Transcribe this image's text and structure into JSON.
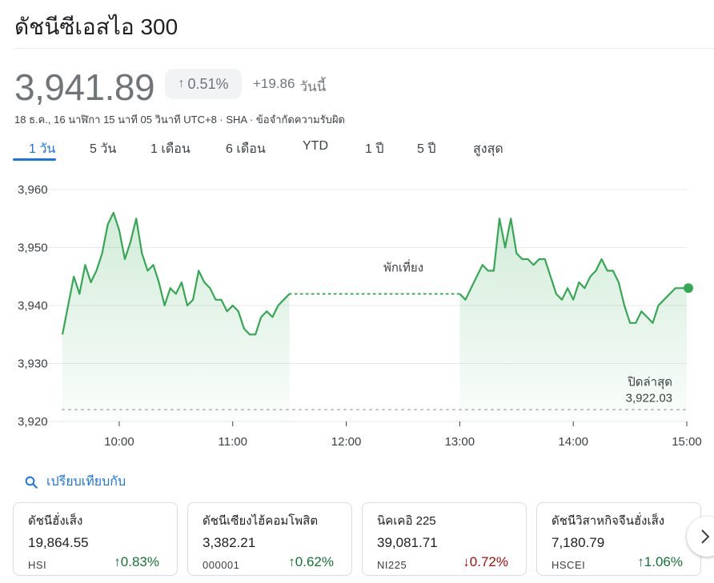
{
  "header": {
    "title": "ดัชนีซีเอสไอ 300",
    "price": "3,941.89",
    "pct_change": "0.51%",
    "abs_change": "+19.86",
    "change_period": "วันนี้",
    "meta": "18 ธ.ค., 16 นาฬิกา 15 นาที 05 วินาที UTC+8 · SHA · ข้อจำกัดความรับผิด"
  },
  "tabs": [
    {
      "label": "1 วัน",
      "active": true
    },
    {
      "label": "5 วัน"
    },
    {
      "label": "1 เดือน"
    },
    {
      "label": "6 เดือน"
    },
    {
      "label": "YTD"
    },
    {
      "label": "1 ปี"
    },
    {
      "label": "5 ปี"
    },
    {
      "label": "สูงสุด"
    }
  ],
  "chart_data": {
    "type": "line",
    "y_ticks": [
      "3,960",
      "3,950",
      "3,940",
      "3,930",
      "3,920"
    ],
    "x_ticks": [
      "10:00",
      "11:00",
      "12:00",
      "13:00",
      "14:00",
      "15:00"
    ],
    "ylim": [
      3920,
      3960
    ],
    "xlim": [
      "09:30",
      "15:00"
    ],
    "lunch_break_label": "พักเที่ยง",
    "lunch_break": [
      "11:30",
      "13:00"
    ],
    "previous_close_label": "ปิดล่าสุด",
    "previous_close_value": "3,922.03",
    "previous_close": 3922.03,
    "line_color": "#34a853",
    "morning": {
      "x": [
        "09:30",
        "09:33",
        "09:36",
        "09:39",
        "09:42",
        "09:45",
        "09:48",
        "09:51",
        "09:54",
        "09:57",
        "10:00",
        "10:03",
        "10:06",
        "10:09",
        "10:12",
        "10:15",
        "10:18",
        "10:21",
        "10:24",
        "10:27",
        "10:30",
        "10:33",
        "10:36",
        "10:39",
        "10:42",
        "10:45",
        "10:48",
        "10:51",
        "10:54",
        "10:57",
        "11:00",
        "11:03",
        "11:06",
        "11:09",
        "11:12",
        "11:15",
        "11:18",
        "11:21",
        "11:24",
        "11:27",
        "11:30"
      ],
      "y": [
        3935,
        3940,
        3945,
        3942,
        3947,
        3944,
        3946,
        3949,
        3954,
        3956,
        3953,
        3948,
        3951,
        3955,
        3949,
        3946,
        3947,
        3944,
        3940,
        3943,
        3942,
        3944,
        3940,
        3941,
        3946,
        3944,
        3943,
        3941,
        3941,
        3939,
        3940,
        3939,
        3936,
        3935,
        3935,
        3938,
        3939,
        3938,
        3940,
        3941,
        3942
      ]
    },
    "afternoon": {
      "x": [
        "13:00",
        "13:03",
        "13:06",
        "13:09",
        "13:12",
        "13:15",
        "13:18",
        "13:21",
        "13:24",
        "13:27",
        "13:30",
        "13:33",
        "13:36",
        "13:39",
        "13:42",
        "13:45",
        "13:48",
        "13:51",
        "13:54",
        "13:57",
        "14:00",
        "14:03",
        "14:06",
        "14:09",
        "14:12",
        "14:15",
        "14:18",
        "14:21",
        "14:24",
        "14:27",
        "14:30",
        "14:33",
        "14:36",
        "14:39",
        "14:42",
        "14:45",
        "14:48",
        "14:51",
        "14:54",
        "14:57",
        "15:00"
      ],
      "y": [
        3942,
        3941,
        3943,
        3945,
        3947,
        3946,
        3946,
        3955,
        3950,
        3955,
        3949,
        3948,
        3948,
        3947,
        3948,
        3948,
        3945,
        3942,
        3941,
        3943,
        3941,
        3944,
        3943,
        3945,
        3946,
        3948,
        3946,
        3946,
        3944,
        3940,
        3937,
        3937,
        3939,
        3938,
        3937,
        3940,
        3941,
        3942,
        3943,
        3943,
        3943
      ]
    }
  },
  "compare": {
    "label": "เปรียบเทียบกับ",
    "icon": "search-icon"
  },
  "cards": [
    {
      "name": "ดัชนีฮั่งเส็ง",
      "value": "19,864.55",
      "symbol": "HSI",
      "pct": "0.83%",
      "direction": "up"
    },
    {
      "name": "ดัชนีเซียงไฮ้คอมโพสิต",
      "value": "3,382.21",
      "symbol": "000001",
      "pct": "0.62%",
      "direction": "up"
    },
    {
      "name": "นิคเคอิ 225",
      "value": "39,081.71",
      "symbol": "NI225",
      "pct": "0.72%",
      "direction": "down"
    },
    {
      "name": "ดัชนีวิสาหกิจจีนฮั่งเส็ง",
      "value": "7,180.79",
      "symbol": "HSCEI",
      "pct": "1.06%",
      "direction": "up"
    }
  ],
  "colors": {
    "up": "#137333",
    "down": "#a50e0e",
    "accent": "#1a73e8",
    "line": "#34a853"
  }
}
